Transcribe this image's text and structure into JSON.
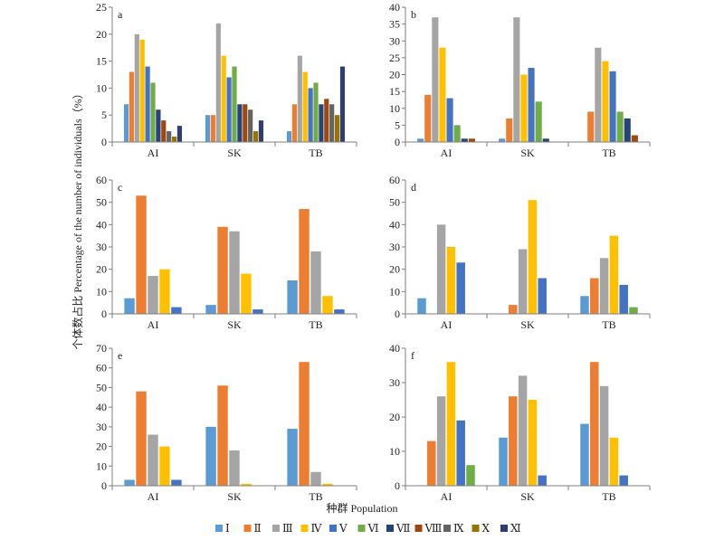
{
  "figure": {
    "ylabel": "个体数占比 Percentage of the number of individuals（%）",
    "xlabel": "种群 Population"
  },
  "legend": {
    "position": "bottom",
    "items": [
      {
        "label": "Ⅰ",
        "color": "#5b9bd5"
      },
      {
        "label": "Ⅱ",
        "color": "#ed7d31"
      },
      {
        "label": "Ⅲ",
        "color": "#a5a5a5"
      },
      {
        "label": "Ⅳ",
        "color": "#ffc000"
      },
      {
        "label": "Ⅴ",
        "color": "#4472c4"
      },
      {
        "label": "Ⅵ",
        "color": "#70ad47"
      },
      {
        "label": "Ⅶ",
        "color": "#264478"
      },
      {
        "label": "Ⅷ",
        "color": "#9e480e"
      },
      {
        "label": "Ⅸ",
        "color": "#636363"
      },
      {
        "label": "Ⅹ",
        "color": "#997300"
      },
      {
        "label": "Ⅺ",
        "color": "#2f3d73"
      }
    ]
  },
  "chart_data": [
    {
      "type": "bar",
      "panel": "a",
      "categories": [
        "AI",
        "SK",
        "TB"
      ],
      "ylim": [
        0,
        25
      ],
      "yticks": [
        0,
        5,
        10,
        15,
        20,
        25
      ],
      "series": [
        {
          "name": "Ⅰ",
          "values": [
            7,
            5,
            2
          ]
        },
        {
          "name": "Ⅱ",
          "values": [
            13,
            5,
            7
          ]
        },
        {
          "name": "Ⅲ",
          "values": [
            20,
            22,
            16
          ]
        },
        {
          "name": "Ⅳ",
          "values": [
            19,
            16,
            13
          ]
        },
        {
          "name": "Ⅴ",
          "values": [
            14,
            12,
            10
          ]
        },
        {
          "name": "Ⅵ",
          "values": [
            11,
            14,
            11
          ]
        },
        {
          "name": "Ⅶ",
          "values": [
            6,
            7,
            7
          ]
        },
        {
          "name": "Ⅷ",
          "values": [
            4,
            7,
            8
          ]
        },
        {
          "name": "Ⅸ",
          "values": [
            2,
            6,
            7
          ]
        },
        {
          "name": "Ⅹ",
          "values": [
            1,
            2,
            5
          ]
        },
        {
          "name": "Ⅺ",
          "values": [
            3,
            4,
            14
          ]
        }
      ]
    },
    {
      "type": "bar",
      "panel": "b",
      "categories": [
        "AI",
        "SK",
        "TB"
      ],
      "ylim": [
        0,
        40
      ],
      "yticks": [
        0,
        5,
        10,
        15,
        20,
        25,
        30,
        35,
        40
      ],
      "series": [
        {
          "name": "Ⅰ",
          "values": [
            1,
            1,
            0
          ]
        },
        {
          "name": "Ⅱ",
          "values": [
            14,
            7,
            9
          ]
        },
        {
          "name": "Ⅲ",
          "values": [
            37,
            37,
            28
          ]
        },
        {
          "name": "Ⅳ",
          "values": [
            28,
            20,
            24
          ]
        },
        {
          "name": "Ⅴ",
          "values": [
            13,
            22,
            21
          ]
        },
        {
          "name": "Ⅵ",
          "values": [
            5,
            12,
            9
          ]
        },
        {
          "name": "Ⅶ",
          "values": [
            1,
            1,
            7
          ]
        },
        {
          "name": "Ⅷ",
          "values": [
            1,
            0,
            2
          ]
        }
      ]
    },
    {
      "type": "bar",
      "panel": "c",
      "categories": [
        "AI",
        "SK",
        "TB"
      ],
      "ylim": [
        0,
        60
      ],
      "yticks": [
        0,
        10,
        20,
        30,
        40,
        50,
        60
      ],
      "series": [
        {
          "name": "Ⅰ",
          "values": [
            7,
            4,
            15
          ]
        },
        {
          "name": "Ⅱ",
          "values": [
            53,
            39,
            47
          ]
        },
        {
          "name": "Ⅲ",
          "values": [
            17,
            37,
            28
          ]
        },
        {
          "name": "Ⅳ",
          "values": [
            20,
            18,
            8
          ]
        },
        {
          "name": "Ⅴ",
          "values": [
            3,
            2,
            2
          ]
        }
      ]
    },
    {
      "type": "bar",
      "panel": "d",
      "categories": [
        "AI",
        "SK",
        "TB"
      ],
      "ylim": [
        0,
        60
      ],
      "yticks": [
        0,
        10,
        20,
        30,
        40,
        50,
        60
      ],
      "series": [
        {
          "name": "Ⅰ",
          "values": [
            7,
            0,
            8
          ]
        },
        {
          "name": "Ⅱ",
          "values": [
            0,
            4,
            16
          ]
        },
        {
          "name": "Ⅲ",
          "values": [
            40,
            29,
            25
          ]
        },
        {
          "name": "Ⅳ",
          "values": [
            30,
            51,
            35
          ]
        },
        {
          "name": "Ⅴ",
          "values": [
            23,
            16,
            13
          ]
        },
        {
          "name": "Ⅵ",
          "values": [
            0,
            0,
            3
          ]
        }
      ]
    },
    {
      "type": "bar",
      "panel": "e",
      "categories": [
        "AI",
        "SK",
        "TB"
      ],
      "ylim": [
        0,
        70
      ],
      "yticks": [
        0,
        10,
        20,
        30,
        40,
        50,
        60,
        70
      ],
      "series": [
        {
          "name": "Ⅰ",
          "values": [
            3,
            30,
            29
          ]
        },
        {
          "name": "Ⅱ",
          "values": [
            48,
            51,
            63
          ]
        },
        {
          "name": "Ⅲ",
          "values": [
            26,
            18,
            7
          ]
        },
        {
          "name": "Ⅳ",
          "values": [
            20,
            1,
            1
          ]
        },
        {
          "name": "Ⅴ",
          "values": [
            3,
            0,
            0
          ]
        }
      ]
    },
    {
      "type": "bar",
      "panel": "f",
      "categories": [
        "AI",
        "SK",
        "TB"
      ],
      "ylim": [
        0,
        40
      ],
      "yticks": [
        0,
        10,
        20,
        30,
        40
      ],
      "series": [
        {
          "name": "Ⅰ",
          "values": [
            0,
            14,
            18
          ]
        },
        {
          "name": "Ⅱ",
          "values": [
            13,
            26,
            36
          ]
        },
        {
          "name": "Ⅲ",
          "values": [
            26,
            32,
            29
          ]
        },
        {
          "name": "Ⅳ",
          "values": [
            36,
            25,
            14
          ]
        },
        {
          "name": "Ⅴ",
          "values": [
            19,
            3,
            3
          ]
        },
        {
          "name": "Ⅵ",
          "values": [
            6,
            0,
            0
          ]
        }
      ]
    }
  ]
}
